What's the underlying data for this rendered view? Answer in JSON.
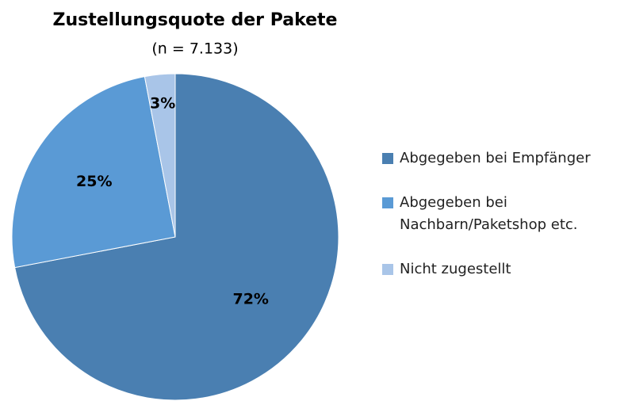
{
  "chart_data": {
    "type": "pie",
    "title": "Zustellungsquote der Pakete",
    "subtitle": "(n = 7.133)",
    "categories": [
      "Abgegeben bei Empfänger",
      "Abgegeben bei Nachbarn/Paketshop etc.",
      "Nicht zugestellt"
    ],
    "values": [
      72,
      25,
      3
    ],
    "value_labels": [
      "72%",
      "25%",
      "3%"
    ],
    "colors": [
      "#4a7fb1",
      "#5a9ad5",
      "#a9c5e8"
    ],
    "legend": "right"
  }
}
